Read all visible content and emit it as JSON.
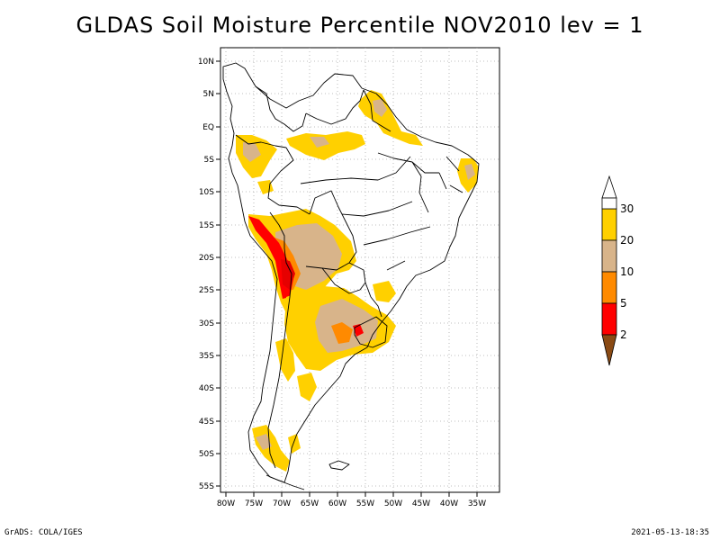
{
  "title": "GLDAS Soil Moisture Percentile NOV2010 lev = 1",
  "footer": {
    "left": "GrADS: COLA/IGES",
    "right": "2021-05-13-18:35"
  },
  "map": {
    "lat_ticks": [
      "10N",
      "5N",
      "EQ",
      "5S",
      "10S",
      "15S",
      "20S",
      "25S",
      "30S",
      "35S",
      "40S",
      "45S",
      "50S",
      "55S"
    ],
    "lon_ticks": [
      "80W",
      "75W",
      "70W",
      "65W",
      "60W",
      "55W",
      "50W",
      "45W",
      "40W",
      "35W"
    ],
    "lon_range": [
      -81,
      -33
    ],
    "lat_range": [
      -56,
      11
    ],
    "grid": true
  },
  "legend": {
    "labels": [
      "30",
      "20",
      "10",
      "5",
      "2"
    ],
    "colors": {
      "above30": "#ffffff",
      "c20_30": "#ffd000",
      "c10_20": "#d8b48a",
      "c5_10": "#ff8a00",
      "c2_5": "#ff0000",
      "below2": "#8a4a14"
    }
  },
  "colors": {
    "border": "#000000",
    "grid": "#999999"
  }
}
